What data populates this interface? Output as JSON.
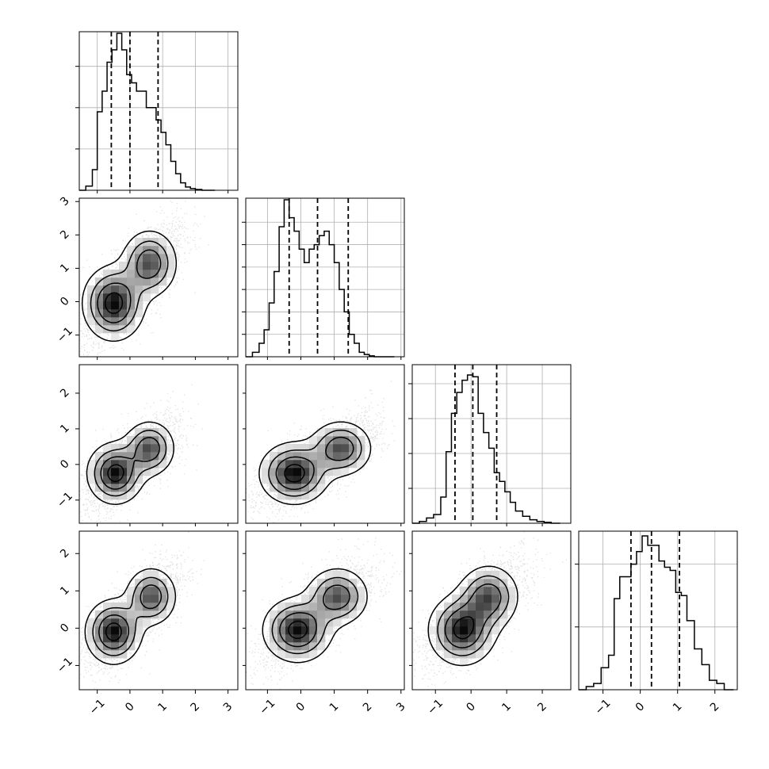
{
  "chart_data": {
    "type": "corner",
    "variables": 4,
    "line_color": "#000000",
    "grid_color": "#b0b0b0",
    "quantile_line_style": "dashed",
    "grid": true,
    "axes": [
      {
        "range": [
          -1.55,
          3.3
        ],
        "ticks": [
          -1,
          0,
          1,
          2,
          3
        ],
        "tick_labels": [
          "−1",
          "0",
          "1",
          "2",
          "3"
        ]
      },
      {
        "range": [
          -1.65,
          3.1
        ],
        "ticks": [
          -1,
          0,
          1,
          2,
          3
        ],
        "tick_labels": [
          "−1",
          "0",
          "1",
          "2",
          "3"
        ]
      },
      {
        "range": [
          -1.65,
          2.8
        ],
        "ticks": [
          -1,
          0,
          1,
          2
        ],
        "tick_labels": [
          "−1",
          "0",
          "1",
          "2"
        ]
      },
      {
        "range": [
          -1.65,
          2.6
        ],
        "ticks": [
          -1,
          0,
          1,
          2
        ],
        "tick_labels": [
          "−1",
          "0",
          "1",
          "2"
        ]
      }
    ],
    "histograms": [
      {
        "bin_edges": [
          -1.55,
          -1.35,
          -1.15,
          -1.0,
          -0.85,
          -0.7,
          -0.55,
          -0.4,
          -0.25,
          -0.1,
          0.05,
          0.2,
          0.35,
          0.5,
          0.65,
          0.8,
          0.95,
          1.1,
          1.25,
          1.4,
          1.55,
          1.7,
          1.85,
          2.0,
          2.2,
          2.4,
          2.6
        ],
        "counts": [
          0,
          1,
          5,
          19,
          24,
          31,
          34,
          38,
          34,
          28,
          26,
          24,
          24,
          20,
          20,
          17,
          14,
          11,
          7,
          4,
          1.8,
          0.8,
          0.4,
          0.2,
          0,
          0
        ],
        "ylim": [
          0,
          38
        ],
        "grid_values": [
          10,
          20,
          30
        ],
        "quantiles": [
          -0.57,
          0.0,
          0.86
        ]
      },
      {
        "bin_edges": [
          -1.65,
          -1.45,
          -1.25,
          -1.1,
          -0.95,
          -0.8,
          -0.65,
          -0.5,
          -0.35,
          -0.2,
          -0.05,
          0.1,
          0.25,
          0.4,
          0.55,
          0.7,
          0.85,
          1.0,
          1.15,
          1.3,
          1.45,
          1.6,
          1.75,
          1.9,
          2.05,
          2.2,
          2.4,
          2.6,
          2.8
        ],
        "counts": [
          0,
          1,
          3,
          6,
          12,
          19,
          29,
          35,
          31,
          28,
          24,
          21,
          24,
          25,
          27,
          28,
          25,
          21,
          15,
          10,
          5,
          3,
          1,
          0.5,
          0.2,
          0,
          0,
          0
        ],
        "ylim": [
          0,
          35
        ],
        "grid_values": [
          5,
          10,
          15,
          20,
          25,
          30
        ],
        "quantiles": [
          -0.35,
          0.5,
          1.42
        ]
      },
      {
        "bin_edges": [
          -1.65,
          -1.45,
          -1.25,
          -1.05,
          -0.85,
          -0.7,
          -0.55,
          -0.4,
          -0.25,
          -0.1,
          0.05,
          0.2,
          0.35,
          0.5,
          0.65,
          0.8,
          0.95,
          1.1,
          1.25,
          1.45,
          1.65,
          1.85,
          2.05,
          2.25,
          2.5
        ],
        "counts": [
          0,
          1,
          3,
          5,
          15,
          41,
          63,
          75,
          82,
          85,
          84,
          63,
          52,
          43,
          29,
          24,
          18,
          12,
          7,
          4,
          2,
          1,
          0.5,
          0
        ],
        "ylim": [
          0,
          90
        ],
        "grid_values": [
          20,
          40,
          60,
          80
        ],
        "quantiles": [
          -0.45,
          0.05,
          0.72
        ]
      },
      {
        "bin_edges": [
          -1.65,
          -1.45,
          -1.25,
          -1.05,
          -0.85,
          -0.7,
          -0.55,
          -0.4,
          -0.25,
          -0.1,
          0.05,
          0.2,
          0.35,
          0.5,
          0.65,
          0.8,
          0.95,
          1.1,
          1.25,
          1.45,
          1.65,
          1.85,
          2.05,
          2.25,
          2.5
        ],
        "counts": [
          0,
          1,
          2,
          7,
          11,
          29,
          36,
          36,
          40,
          44,
          49,
          46,
          46,
          41,
          39,
          38,
          31,
          30,
          22,
          13,
          8,
          3,
          2,
          0
        ],
        "ylim": [
          0,
          50
        ],
        "grid_values": [
          20,
          40
        ],
        "quantiles": [
          -0.25,
          0.3,
          1.05
        ]
      }
    ],
    "scatter_panels": [
      {
        "row": 1,
        "col": 0,
        "sx": 0.55,
        "sy": 0.65,
        "rho": 0.55,
        "modes": [
          [
            -0.5,
            -0.05
          ],
          [
            0.6,
            1.15
          ]
        ]
      },
      {
        "row": 2,
        "col": 0,
        "sx": 0.5,
        "sy": 0.5,
        "rho": 0.5,
        "modes": [
          [
            -0.45,
            -0.25
          ],
          [
            0.6,
            0.45
          ]
        ]
      },
      {
        "row": 2,
        "col": 1,
        "sx": 0.6,
        "sy": 0.5,
        "rho": 0.5,
        "modes": [
          [
            -0.2,
            -0.25
          ],
          [
            1.2,
            0.45
          ]
        ]
      },
      {
        "row": 3,
        "col": 0,
        "sx": 0.5,
        "sy": 0.5,
        "rho": 0.5,
        "modes": [
          [
            -0.5,
            -0.1
          ],
          [
            0.65,
            0.85
          ]
        ]
      },
      {
        "row": 3,
        "col": 1,
        "sx": 0.6,
        "sy": 0.5,
        "rho": 0.5,
        "modes": [
          [
            -0.1,
            -0.05
          ],
          [
            1.1,
            0.85
          ]
        ]
      },
      {
        "row": 3,
        "col": 2,
        "sx": 0.55,
        "sy": 0.55,
        "rho": 0.5,
        "modes": [
          [
            -0.25,
            -0.05
          ],
          [
            0.5,
            0.85
          ]
        ]
      }
    ]
  }
}
